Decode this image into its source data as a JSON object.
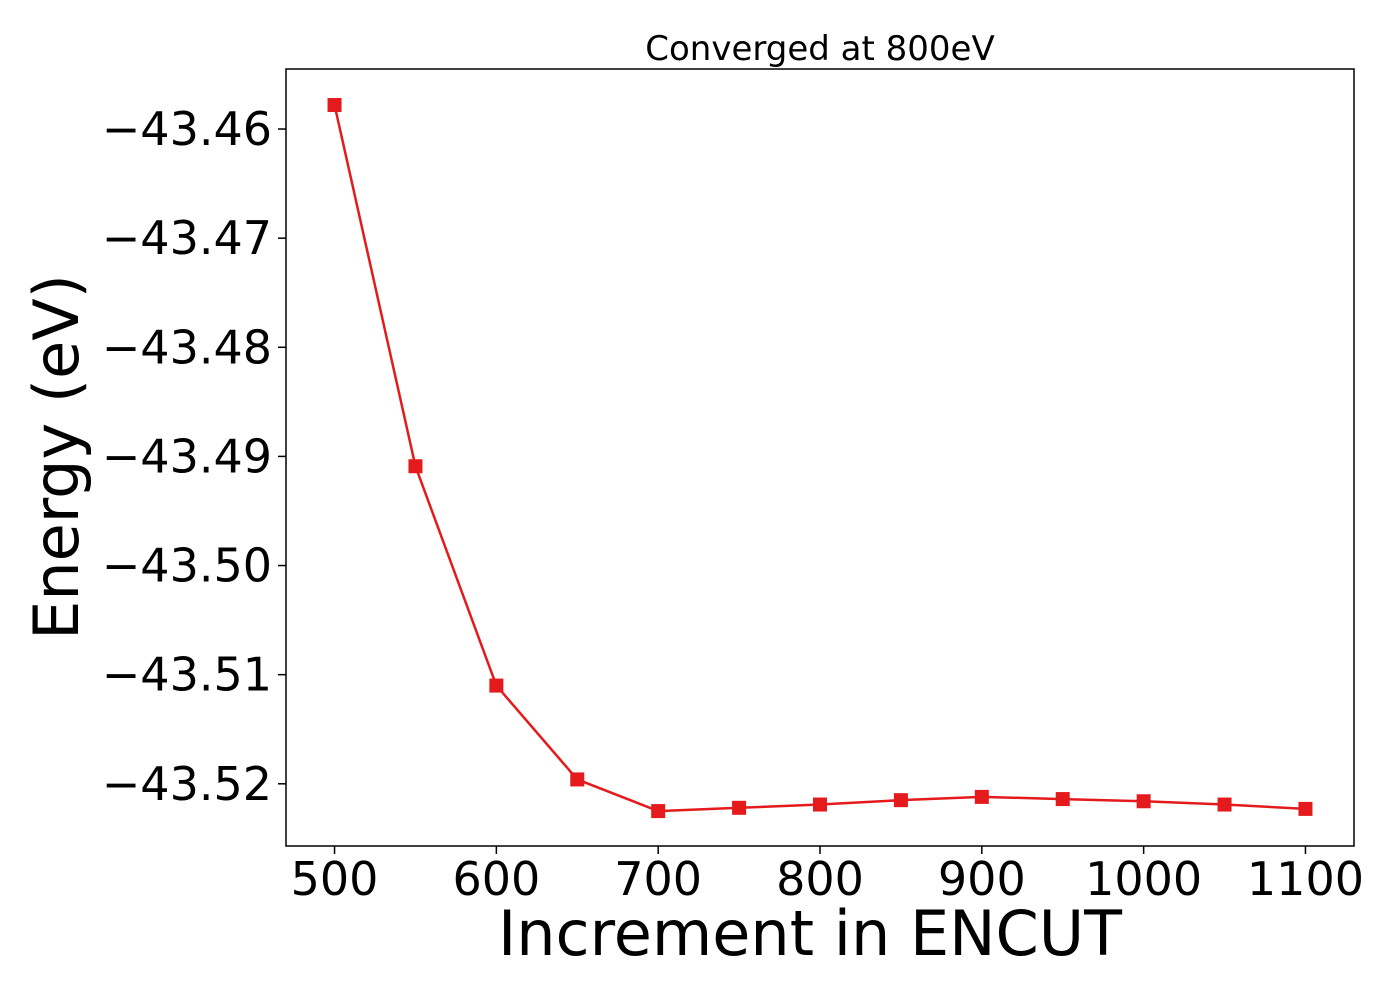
{
  "chart_data": {
    "type": "line",
    "title": "Converged at 800eV",
    "xlabel": "Increment in ENCUT",
    "ylabel": "Energy (eV)",
    "x": [
      500,
      550,
      600,
      650,
      700,
      750,
      800,
      850,
      900,
      950,
      1000,
      1050,
      1100
    ],
    "series": [
      {
        "values": [
          -43.4578,
          -43.4909,
          -43.511,
          -43.5196,
          -43.5225,
          -43.5222,
          -43.5219,
          -43.5215,
          -43.5212,
          -43.5214,
          -43.5216,
          -43.5219,
          -43.5223
        ],
        "color": "#e41a1c",
        "marker": "square"
      }
    ],
    "xticks": [
      500,
      600,
      700,
      800,
      900,
      1000,
      1100
    ],
    "xtick_labels": [
      "500",
      "600",
      "700",
      "800",
      "900",
      "1000",
      "1100"
    ],
    "yticks": [
      -43.46,
      -43.47,
      -43.48,
      -43.49,
      -43.5,
      -43.51,
      -43.52
    ],
    "ytick_labels": [
      "−43.46",
      "−43.47",
      "−43.48",
      "−43.49",
      "−43.50",
      "−43.51",
      "−43.52"
    ],
    "xlim": [
      470,
      1130
    ],
    "ylim": [
      -43.5257,
      -43.4545
    ],
    "grid": false,
    "legend": false
  }
}
